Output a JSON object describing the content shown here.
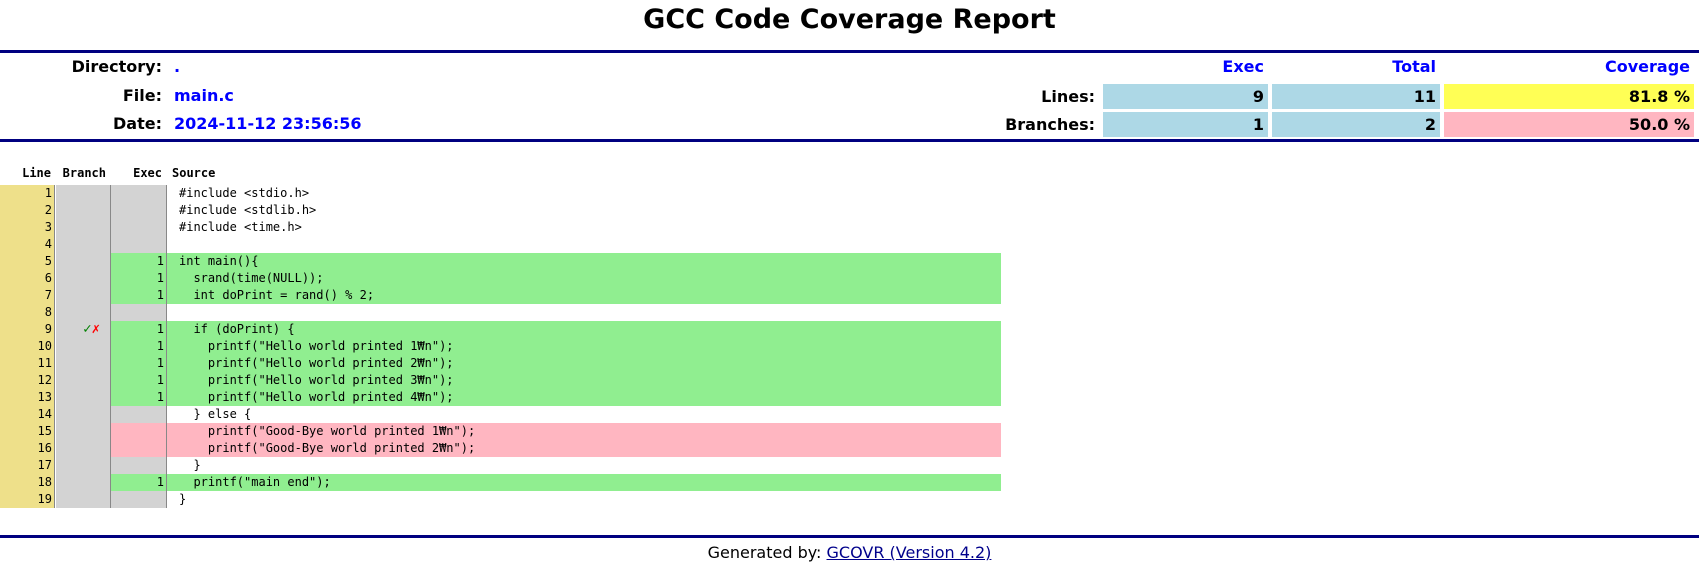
{
  "header": {
    "title": "GCC Code Coverage Report"
  },
  "info": [
    {
      "label": "Directory:",
      "value": "."
    },
    {
      "label": "File:",
      "value": "main.c"
    },
    {
      "label": "Date:",
      "value": "2024-11-12 23:56:56"
    }
  ],
  "summary": {
    "columns": [
      "Exec",
      "Total",
      "Coverage"
    ],
    "rows": [
      {
        "label": "Lines:",
        "exec": 9,
        "total": 11,
        "coverage": "81.8 %",
        "color": "#ffff55"
      },
      {
        "label": "Branches:",
        "exec": 1,
        "total": 2,
        "coverage": "50.0 %",
        "color": "#ffb6c1"
      }
    ]
  },
  "source": {
    "columns": [
      "Line",
      "Branch",
      "Exec",
      "Source"
    ],
    "rows": [
      {
        "line": 1,
        "branch": null,
        "exec": null,
        "code": "#include <stdio.h>",
        "status": "none"
      },
      {
        "line": 2,
        "branch": null,
        "exec": null,
        "code": "#include <stdlib.h>",
        "status": "none"
      },
      {
        "line": 3,
        "branch": null,
        "exec": null,
        "code": "#include <time.h>",
        "status": "none"
      },
      {
        "line": 4,
        "branch": null,
        "exec": null,
        "code": null,
        "status": "none"
      },
      {
        "line": 5,
        "branch": null,
        "exec": 1,
        "code": "int main(){",
        "status": "covered"
      },
      {
        "line": 6,
        "branch": null,
        "exec": 1,
        "code": "  srand(time(NULL));",
        "status": "covered"
      },
      {
        "line": 7,
        "branch": null,
        "exec": 1,
        "code": "  int doPrint = rand() % 2;",
        "status": "covered"
      },
      {
        "line": 8,
        "branch": null,
        "exec": null,
        "code": null,
        "status": "none"
      },
      {
        "line": 9,
        "branch": [
          "✓",
          "✗"
        ],
        "exec": 1,
        "code": "  if (doPrint) {",
        "status": "covered"
      },
      {
        "line": 10,
        "branch": null,
        "exec": 1,
        "code": "    printf(\"Hello world printed 1₩n\");",
        "status": "covered"
      },
      {
        "line": 11,
        "branch": null,
        "exec": 1,
        "code": "    printf(\"Hello world printed 2₩n\");",
        "status": "covered"
      },
      {
        "line": 12,
        "branch": null,
        "exec": 1,
        "code": "    printf(\"Hello world printed 3₩n\");",
        "status": "covered"
      },
      {
        "line": 13,
        "branch": null,
        "exec": 1,
        "code": "    printf(\"Hello world printed 4₩n\");",
        "status": "covered"
      },
      {
        "line": 14,
        "branch": null,
        "exec": null,
        "code": "  } else {",
        "status": "none"
      },
      {
        "line": 15,
        "branch": null,
        "exec": null,
        "code": "    printf(\"Good-Bye world printed 1₩n\");",
        "status": "uncovered"
      },
      {
        "line": 16,
        "branch": null,
        "exec": null,
        "code": "    printf(\"Good-Bye world printed 2₩n\");",
        "status": "uncovered"
      },
      {
        "line": 17,
        "branch": null,
        "exec": null,
        "code": "  }",
        "status": "none"
      },
      {
        "line": 18,
        "branch": null,
        "exec": 1,
        "code": "  printf(\"main end\");",
        "status": "covered"
      },
      {
        "line": 19,
        "branch": null,
        "exec": null,
        "code": "}",
        "status": "none"
      }
    ]
  },
  "footer": {
    "text": "Generated by:",
    "link": "GCOVR (Version 4.2)"
  }
}
